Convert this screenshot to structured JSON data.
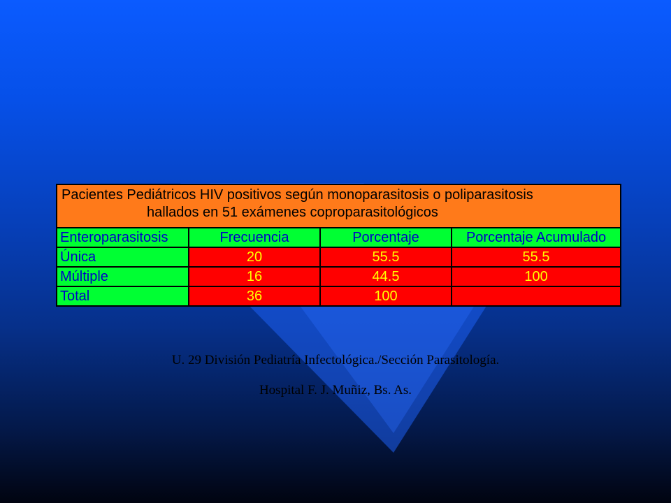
{
  "colors": {
    "title_bg": "#ff7a1a",
    "header_bg": "#00ff33",
    "header_text": "#0000c8",
    "value_bg": "#ff0000",
    "value_text": "#ffff00",
    "background_top": "#0b5bff",
    "background_bottom": "#010410"
  },
  "table": {
    "title_line1": "Pacientes Pediátricos HIV positivos según monoparasitosis o poliparasitosis",
    "title_line2": "hallados en 51 exámenes coproparasitológicos",
    "headers": [
      "Enteroparasitosis",
      "Frecuencia",
      "Porcentaje",
      "Porcentaje Acumulado"
    ],
    "rows": [
      [
        "Única",
        "20",
        "55.5",
        "55.5"
      ],
      [
        "Múltiple",
        "16",
        "44.5",
        "100"
      ],
      [
        "Total",
        "36",
        "100",
        ""
      ]
    ]
  },
  "footer": {
    "line1": "U. 29  División Pediatría Infectológica./Sección  Parasitología.",
    "line2": "Hospital F. J. Muñiz, Bs. As."
  }
}
